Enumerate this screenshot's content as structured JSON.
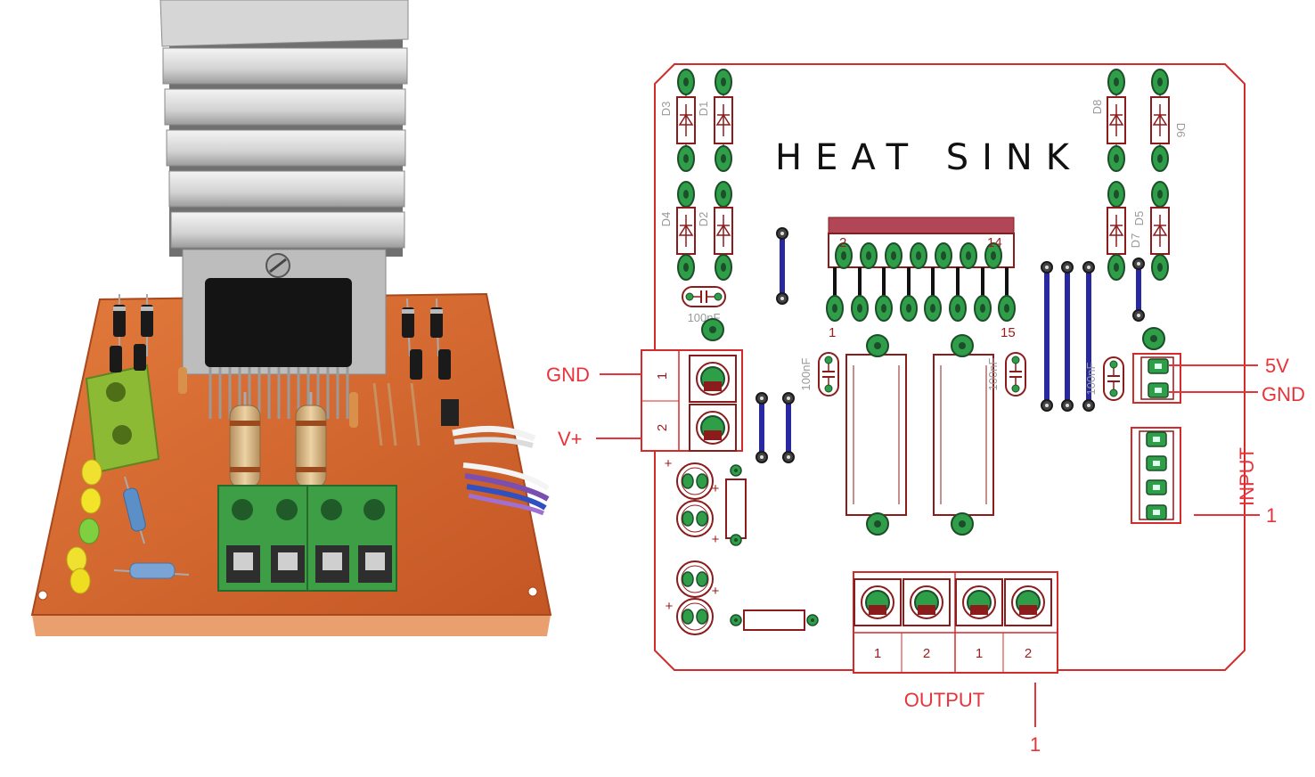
{
  "schematic": {
    "title": "HEAT SINK",
    "diodes": {
      "d3": "D3",
      "d1": "D1",
      "d4": "D4",
      "d2": "D2",
      "d8": "D8",
      "d6": "D6",
      "d7": "D7",
      "d5": "D5"
    },
    "capacitors": [
      "100nF",
      "100nF",
      "100nF",
      "100nF"
    ],
    "ic_pins": {
      "top_first": "2",
      "top_last": "14",
      "bottom_first": "1",
      "bottom_last": "15"
    },
    "power_terminal": {
      "pin_1": "1",
      "pin_2": "2",
      "gnd_label": "GND",
      "vplus_label": "V+"
    },
    "logic_supply": {
      "v5_label": "5V",
      "gnd_label": "GND"
    },
    "input": {
      "label": "INPUT",
      "pin_marker": "1"
    },
    "output": {
      "label": "OUTPUT",
      "pins": [
        "1",
        "2",
        "1",
        "2"
      ],
      "pin_marker": "1"
    },
    "led_polarity_marks": [
      "+",
      "+",
      "+",
      "+",
      "+"
    ]
  },
  "colors": {
    "board_outline": "#d42a2a",
    "pad": "#2e9e48",
    "jumper": "#2828a0",
    "callout_label": "#e8333a",
    "pcb_photo": "#d9682f",
    "heatsink": "#c8c8c8",
    "terminal_block": "#3d9e46"
  }
}
